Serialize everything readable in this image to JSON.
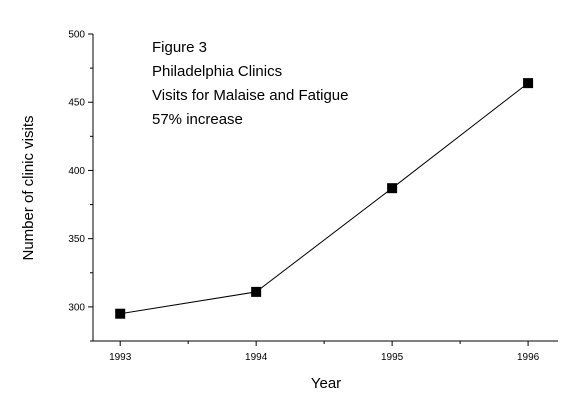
{
  "chart_data": {
    "type": "line",
    "x": [
      1993,
      1994,
      1995,
      1996
    ],
    "series": [
      {
        "values": [
          295,
          311,
          387,
          464
        ]
      }
    ],
    "xlabel": "Year",
    "ylabel": "Number of clinic visits",
    "xlim": [
      1992.8,
      1996.22
    ],
    "ylim": [
      275,
      500
    ],
    "x_ticks": [
      "1993",
      "1994",
      "1995",
      "1996"
    ],
    "y_ticks": [
      "300",
      "350",
      "400",
      "450",
      "500"
    ],
    "annotations": [
      "Figure 3",
      "Philadelphia Clinics",
      "Visits for Malaise and Fatigue",
      "57% increase"
    ],
    "marker": "square",
    "grid": false,
    "legend": "none",
    "colors": {
      "line": "#000000",
      "marker": "#000000",
      "axis": "#000000"
    }
  }
}
